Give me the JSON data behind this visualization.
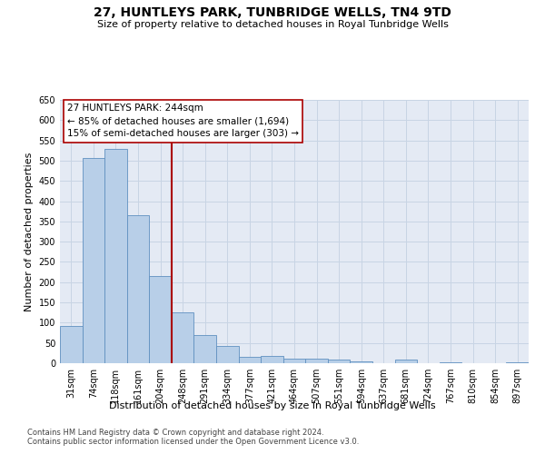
{
  "title": "27, HUNTLEYS PARK, TUNBRIDGE WELLS, TN4 9TD",
  "subtitle": "Size of property relative to detached houses in Royal Tunbridge Wells",
  "xlabel": "Distribution of detached houses by size in Royal Tunbridge Wells",
  "ylabel": "Number of detached properties",
  "footer_line1": "Contains HM Land Registry data © Crown copyright and database right 2024.",
  "footer_line2": "Contains public sector information licensed under the Open Government Licence v3.0.",
  "bar_labels": [
    "31sqm",
    "74sqm",
    "118sqm",
    "161sqm",
    "204sqm",
    "248sqm",
    "291sqm",
    "334sqm",
    "377sqm",
    "421sqm",
    "464sqm",
    "507sqm",
    "551sqm",
    "594sqm",
    "637sqm",
    "681sqm",
    "724sqm",
    "767sqm",
    "810sqm",
    "854sqm",
    "897sqm"
  ],
  "bar_values": [
    92,
    507,
    530,
    365,
    215,
    125,
    70,
    43,
    16,
    19,
    11,
    11,
    8,
    5,
    0,
    8,
    0,
    3,
    0,
    0,
    3
  ],
  "bar_color": "#b8cfe8",
  "bar_edge_color": "#6090c0",
  "ylim_max": 650,
  "ytick_step": 50,
  "property_line_color": "#aa0000",
  "property_line_idx": 5,
  "annotation_line1": "27 HUNTLEYS PARK: 244sqm",
  "annotation_line2": "← 85% of detached houses are smaller (1,694)",
  "annotation_line3": "15% of semi-detached houses are larger (303) →",
  "annotation_box_fc": "#ffffff",
  "annotation_box_ec": "#aa0000",
  "grid_color": "#c8d4e4",
  "bg_color": "#e4eaf4",
  "fig_bg": "#ffffff",
  "title_fontsize": 10,
  "subtitle_fontsize": 8,
  "ylabel_fontsize": 8,
  "xlabel_fontsize": 8,
  "tick_fontsize": 7,
  "footer_fontsize": 6,
  "annotation_fontsize": 7.5
}
